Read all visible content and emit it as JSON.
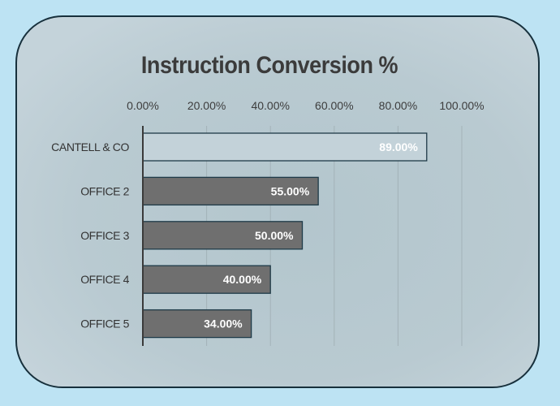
{
  "chart_data": {
    "type": "bar",
    "orientation": "horizontal",
    "title": "Instruction Conversion %",
    "categories": [
      "CANTELL & CO",
      "OFFICE 2",
      "OFFICE 3",
      "OFFICE 4",
      "OFFICE 5"
    ],
    "values": [
      89,
      55,
      50,
      40,
      34
    ],
    "data_labels": [
      "89.00%",
      "55.00%",
      "50.00%",
      "40.00%",
      "34.00%"
    ],
    "xlim": [
      0,
      100
    ],
    "x_ticks": [
      0,
      20,
      40,
      60,
      80,
      100
    ],
    "x_tick_labels": [
      "0.00%",
      "20.00%",
      "40.00%",
      "60.00%",
      "80.00%",
      "100.00%"
    ],
    "x_axis_position": "top",
    "grid": true,
    "colors": {
      "highlight": "#c3d2d9",
      "bars": "#6f6f6f",
      "outline": "#1e3a48"
    }
  }
}
